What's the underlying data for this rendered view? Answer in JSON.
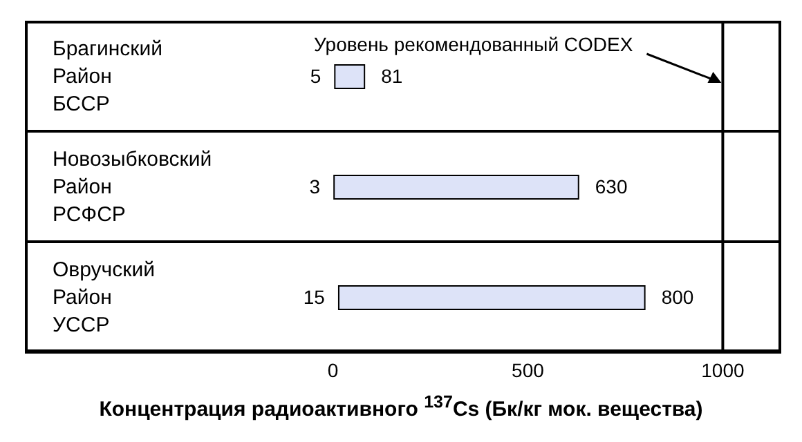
{
  "chart_data": {
    "type": "bar",
    "orientation": "horizontal",
    "categories": [
      "Брагинский\nРайон\nБССР",
      "Новозыбковский\nРайон\nРСФСР",
      "Овручский\nРайон\nУССР"
    ],
    "base": [
      5,
      3,
      15
    ],
    "values": [
      76,
      627,
      785
    ],
    "color": "#dde3f8",
    "xlim": [
      -790,
      1150
    ],
    "xticks": [
      0,
      500,
      1000
    ],
    "xlabel": "Концентрация радиоактивного $^{137}$Cs (Бк/кг мок. вещества)",
    "grid": "y",
    "ref_lines": [
      {
        "axis": "x",
        "value": 1000,
        "label": "Уровень рекомендованный CODEX",
        "color": "#000000"
      }
    ],
    "annotations": [
      {
        "text": "5",
        "x": 5,
        "y": "Брагинский\nРайон\nБССР"
      },
      {
        "text": "81",
        "x": 81,
        "y": "Брагинский\nРайон\nБССР"
      },
      {
        "text": "3",
        "x": 3,
        "y": "Новозыбковский\nРайон\nРСФСР"
      },
      {
        "text": "630",
        "x": 630,
        "y": "Новозыбковский\nРайон\nРСФСР"
      },
      {
        "text": "15",
        "x": 15,
        "y": "Овручский\nРайон\nУССР"
      },
      {
        "text": "800",
        "x": 800,
        "y": "Овручский\nРайон\nУССР"
      }
    ]
  }
}
